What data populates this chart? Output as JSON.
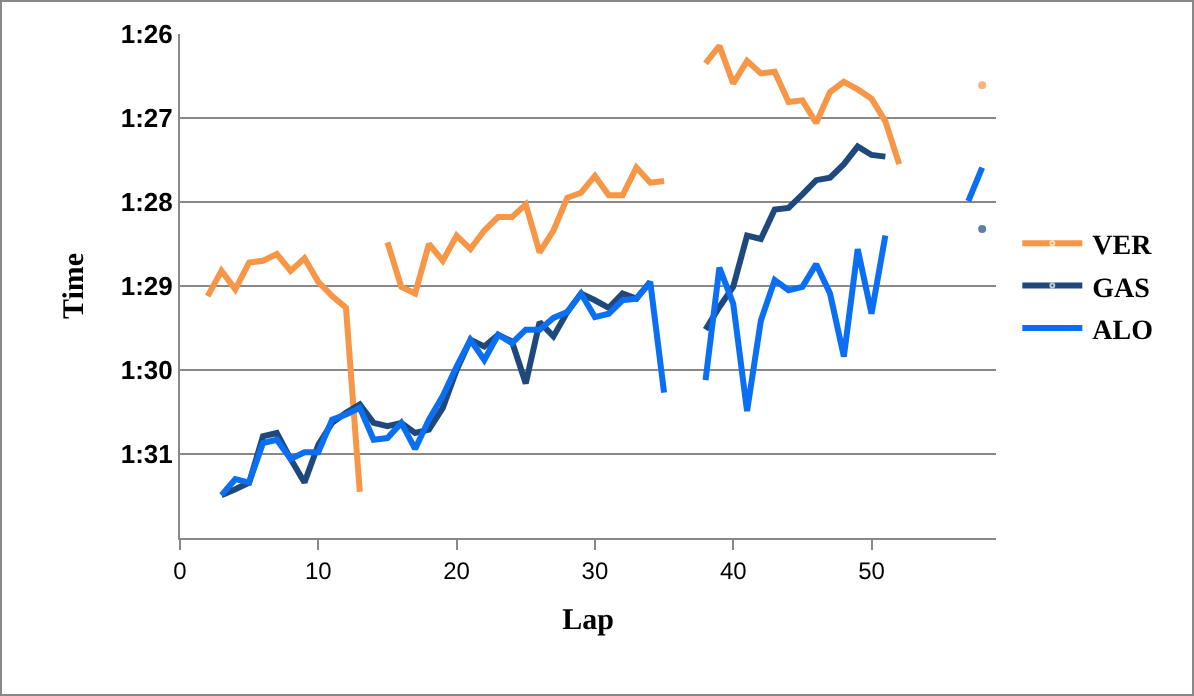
{
  "chart_data": {
    "type": "line",
    "xlabel": "Lap",
    "ylabel": "Time",
    "x": [
      2,
      3,
      4,
      5,
      6,
      7,
      8,
      9,
      10,
      11,
      12,
      13,
      14,
      15,
      16,
      17,
      18,
      19,
      20,
      21,
      22,
      23,
      24,
      25,
      26,
      27,
      28,
      29,
      30,
      31,
      32,
      33,
      34,
      35,
      36,
      37,
      38,
      39,
      40,
      41,
      42,
      43,
      44,
      45,
      46,
      47,
      48,
      49,
      50,
      51,
      52,
      53,
      54,
      55,
      56,
      57,
      58
    ],
    "series": [
      {
        "name": "VER",
        "color": "#f79646",
        "values": [
          89.12,
          88.82,
          89.04,
          88.72,
          88.7,
          88.62,
          88.82,
          88.67,
          88.95,
          89.12,
          89.26,
          91.45,
          null,
          88.48,
          89.01,
          89.09,
          88.5,
          88.7,
          88.4,
          88.56,
          88.34,
          88.18,
          88.18,
          88.03,
          88.6,
          88.34,
          87.95,
          87.89,
          87.69,
          87.92,
          87.92,
          87.59,
          87.77,
          87.75,
          null,
          null,
          86.35,
          86.14,
          86.59,
          86.32,
          86.47,
          86.45,
          86.81,
          86.79,
          87.06,
          86.69,
          86.57,
          86.66,
          86.77,
          87.04,
          87.55,
          null,
          null,
          null,
          null,
          null,
          86.61
        ]
      },
      {
        "name": "GAS",
        "color": "#1f497d",
        "values": [
          null,
          91.49,
          91.42,
          91.34,
          90.79,
          90.75,
          91.06,
          91.34,
          90.89,
          90.63,
          90.51,
          90.41,
          90.63,
          90.67,
          90.63,
          90.75,
          90.71,
          90.45,
          90.0,
          89.64,
          89.72,
          89.58,
          89.66,
          90.16,
          89.43,
          89.6,
          89.31,
          89.09,
          89.17,
          89.26,
          89.09,
          89.15,
          88.95,
          null,
          null,
          null,
          89.52,
          89.25,
          89.01,
          88.4,
          88.44,
          88.09,
          88.07,
          87.91,
          87.74,
          87.71,
          87.55,
          87.34,
          87.44,
          87.46,
          null,
          null,
          null,
          null,
          null,
          null,
          88.32
        ]
      },
      {
        "name": "ALO",
        "color": "#0a6ff2",
        "values": [
          null,
          91.49,
          91.3,
          91.34,
          90.87,
          90.83,
          91.06,
          90.98,
          90.98,
          90.59,
          90.53,
          90.45,
          90.83,
          90.81,
          90.63,
          90.94,
          90.59,
          90.31,
          89.96,
          89.64,
          89.88,
          89.58,
          89.68,
          89.52,
          89.52,
          89.38,
          89.31,
          89.09,
          89.37,
          89.33,
          89.17,
          89.15,
          88.95,
          90.27,
          null,
          null,
          90.12,
          88.78,
          89.21,
          90.49,
          89.41,
          88.93,
          89.05,
          89.01,
          88.74,
          89.09,
          89.84,
          88.56,
          89.33,
          88.4,
          null,
          null,
          null,
          null,
          null,
          87.99,
          87.59
        ]
      }
    ],
    "xlim": [
      0,
      59
    ],
    "xticks": [
      0,
      10,
      20,
      30,
      40,
      50
    ],
    "ylim": [
      92,
      86
    ],
    "yticks": [
      {
        "value": 86,
        "label": "1:26"
      },
      {
        "value": 87,
        "label": "1:27"
      },
      {
        "value": 88,
        "label": "1:28"
      },
      {
        "value": 89,
        "label": "1:29"
      },
      {
        "value": 90,
        "label": "1:30"
      },
      {
        "value": 91,
        "label": "1:31"
      }
    ],
    "grid": "y",
    "legend": "right",
    "marker": "none",
    "line_style": "solid"
  }
}
